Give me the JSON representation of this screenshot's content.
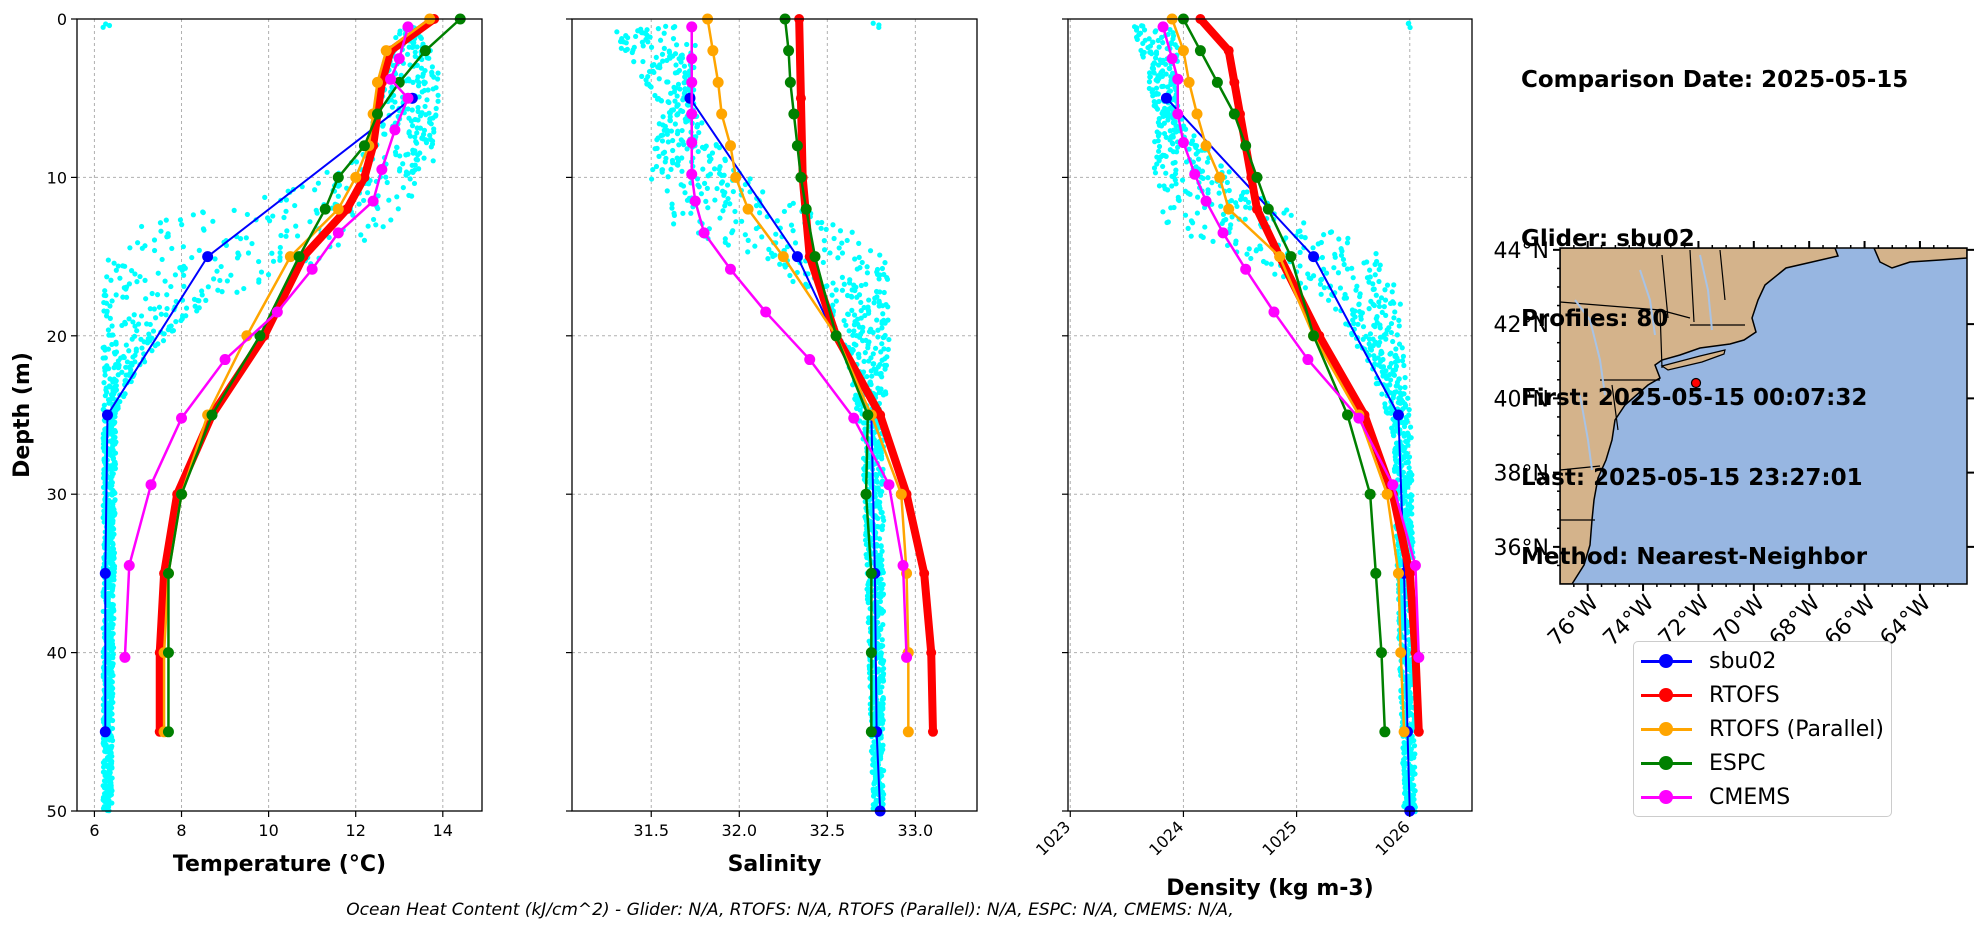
{
  "chart_data": [
    {
      "type": "line",
      "xlabel": "Temperature (°C)",
      "ylabel": "Depth (m)",
      "xlim": [
        5.6,
        14.9
      ],
      "ylim": [
        50,
        0
      ],
      "xticks": [
        6,
        8,
        10,
        12,
        14
      ],
      "yticks": [
        0,
        10,
        20,
        30,
        40,
        50
      ],
      "grid": true,
      "glider_cloud": [
        {
          "depth": 0.5,
          "lo": 13.0,
          "hi": 13.4
        },
        {
          "depth": 3,
          "lo": 12.6,
          "hi": 13.9
        },
        {
          "depth": 6,
          "lo": 12.5,
          "hi": 13.9
        },
        {
          "depth": 9,
          "lo": 12.0,
          "hi": 13.8
        },
        {
          "depth": 11,
          "lo": 10.0,
          "hi": 13.4
        },
        {
          "depth": 13,
          "lo": 7.0,
          "hi": 12.8
        },
        {
          "depth": 15,
          "lo": 6.3,
          "hi": 11.6
        },
        {
          "depth": 18,
          "lo": 6.2,
          "hi": 8.6
        },
        {
          "depth": 22,
          "lo": 6.2,
          "hi": 7.0
        },
        {
          "depth": 25,
          "lo": 6.2,
          "hi": 6.5
        },
        {
          "depth": 50,
          "lo": 6.2,
          "hi": 6.4
        }
      ],
      "series": [
        {
          "name": "sbu02",
          "color": "#0000ff",
          "depth": [
            5,
            15,
            25,
            35,
            45
          ],
          "values": [
            13.3,
            8.6,
            6.3,
            6.25,
            6.25
          ]
        },
        {
          "name": "RTOFS",
          "color": "#ff0000",
          "depth": [
            0,
            2,
            4,
            6,
            8,
            10,
            12,
            15,
            20,
            25,
            30,
            35,
            40,
            45
          ],
          "values": [
            13.8,
            12.8,
            12.6,
            12.5,
            12.4,
            12.2,
            11.8,
            10.8,
            9.9,
            8.7,
            7.9,
            7.6,
            7.5,
            7.5
          ]
        },
        {
          "name": "RTOFS (Parallel)",
          "color": "#ffa500",
          "depth": [
            0,
            2,
            4,
            6,
            8,
            10,
            12,
            15,
            20,
            25,
            30,
            35,
            40,
            45
          ],
          "values": [
            13.7,
            12.7,
            12.5,
            12.4,
            12.3,
            12.0,
            11.6,
            10.5,
            9.5,
            8.6,
            8.0,
            7.7,
            7.6,
            7.6
          ]
        },
        {
          "name": "ESPC",
          "color": "#008000",
          "depth": [
            0,
            2,
            4,
            6,
            8,
            10,
            12,
            15,
            20,
            25,
            30,
            35,
            40,
            45
          ],
          "values": [
            14.4,
            13.6,
            13.0,
            12.5,
            12.2,
            11.6,
            11.3,
            10.7,
            9.8,
            8.7,
            8.0,
            7.7,
            7.7,
            7.7
          ]
        },
        {
          "name": "CMEMS",
          "color": "#ff00ff",
          "depth": [
            0.5,
            2.5,
            3.8,
            5,
            7,
            9.5,
            11.5,
            13.5,
            15.8,
            18.5,
            21.5,
            25.2,
            29.4,
            34.5,
            40.3
          ],
          "values": [
            13.2,
            13.0,
            12.8,
            13.2,
            12.9,
            12.6,
            12.4,
            11.6,
            11.0,
            10.2,
            9.0,
            8.0,
            7.3,
            6.8,
            6.7
          ]
        }
      ]
    },
    {
      "type": "line",
      "xlabel": "Salinity",
      "xlim": [
        31.05,
        33.35
      ],
      "ylim": [
        50,
        0
      ],
      "xticks": [
        31.5,
        32.0,
        32.5,
        33.0
      ],
      "grid": true,
      "glider_cloud": [
        {
          "depth": 0.5,
          "lo": 31.25,
          "hi": 31.75
        },
        {
          "depth": 3,
          "lo": 31.4,
          "hi": 31.75
        },
        {
          "depth": 6,
          "lo": 31.55,
          "hi": 31.75
        },
        {
          "depth": 9,
          "lo": 31.5,
          "hi": 31.95
        },
        {
          "depth": 11,
          "lo": 31.5,
          "hi": 32.2
        },
        {
          "depth": 13,
          "lo": 31.6,
          "hi": 32.6
        },
        {
          "depth": 15,
          "lo": 32.1,
          "hi": 32.85
        },
        {
          "depth": 18,
          "lo": 32.5,
          "hi": 32.85
        },
        {
          "depth": 22,
          "lo": 32.6,
          "hi": 32.85
        },
        {
          "depth": 26,
          "lo": 32.7,
          "hi": 32.82
        },
        {
          "depth": 50,
          "lo": 32.76,
          "hi": 32.82
        }
      ],
      "series": [
        {
          "name": "sbu02",
          "color": "#0000ff",
          "depth": [
            5,
            15,
            25,
            35,
            45,
            50
          ],
          "values": [
            31.72,
            32.33,
            32.75,
            32.77,
            32.78,
            32.8
          ]
        },
        {
          "name": "RTOFS",
          "color": "#ff0000",
          "depth": [
            0,
            5,
            10,
            15,
            20,
            25,
            30,
            35,
            40,
            45
          ],
          "values": [
            32.34,
            32.35,
            32.36,
            32.4,
            32.55,
            32.8,
            32.95,
            33.05,
            33.09,
            33.1
          ]
        },
        {
          "name": "RTOFS (Parallel)",
          "color": "#ffa500",
          "depth": [
            0,
            2,
            4,
            6,
            8,
            10,
            12,
            15,
            20,
            25,
            30,
            35,
            40,
            45
          ],
          "values": [
            31.82,
            31.85,
            31.88,
            31.9,
            31.95,
            31.98,
            32.05,
            32.25,
            32.55,
            32.75,
            32.92,
            32.95,
            32.96,
            32.96
          ]
        },
        {
          "name": "ESPC",
          "color": "#008000",
          "depth": [
            0,
            2,
            4,
            6,
            8,
            10,
            12,
            15,
            20,
            25,
            30,
            35,
            40,
            45
          ],
          "values": [
            32.26,
            32.28,
            32.29,
            32.31,
            32.33,
            32.35,
            32.38,
            32.43,
            32.55,
            32.73,
            32.72,
            32.75,
            32.75,
            32.75
          ]
        },
        {
          "name": "CMEMS",
          "color": "#ff00ff",
          "depth": [
            0.5,
            2.5,
            4,
            6,
            7.8,
            9.8,
            11.5,
            13.5,
            15.8,
            18.5,
            21.5,
            25.2,
            29.4,
            34.5,
            40.3
          ],
          "values": [
            31.73,
            31.73,
            31.73,
            31.73,
            31.73,
            31.73,
            31.75,
            31.8,
            31.95,
            32.15,
            32.4,
            32.65,
            32.85,
            32.93,
            32.95
          ]
        }
      ]
    },
    {
      "type": "line",
      "xlabel": "Density (kg m-3)",
      "xlim": [
        1022.98,
        1026.55
      ],
      "ylim": [
        50,
        0
      ],
      "xticks": [
        1023,
        1024,
        1025,
        1026
      ],
      "grid": true,
      "glider_cloud": [
        {
          "depth": 0.5,
          "lo": 1023.55,
          "hi": 1023.95
        },
        {
          "depth": 3,
          "lo": 1023.65,
          "hi": 1023.95
        },
        {
          "depth": 6,
          "lo": 1023.75,
          "hi": 1023.95
        },
        {
          "depth": 9,
          "lo": 1023.7,
          "hi": 1024.3
        },
        {
          "depth": 11,
          "lo": 1023.75,
          "hi": 1024.6
        },
        {
          "depth": 13,
          "lo": 1023.85,
          "hi": 1025.3
        },
        {
          "depth": 15,
          "lo": 1024.5,
          "hi": 1025.8
        },
        {
          "depth": 18,
          "lo": 1025.3,
          "hi": 1025.92
        },
        {
          "depth": 22,
          "lo": 1025.65,
          "hi": 1025.95
        },
        {
          "depth": 26,
          "lo": 1025.85,
          "hi": 1026.02
        },
        {
          "depth": 50,
          "lo": 1025.95,
          "hi": 1026.05
        }
      ],
      "series": [
        {
          "name": "sbu02",
          "color": "#0000ff",
          "depth": [
            5,
            15,
            25,
            35,
            45,
            50
          ],
          "values": [
            1023.85,
            1025.15,
            1025.9,
            1025.95,
            1025.98,
            1026.0
          ]
        },
        {
          "name": "RTOFS",
          "color": "#ff0000",
          "depth": [
            0,
            2,
            4,
            6,
            8,
            10,
            12,
            15,
            20,
            25,
            30,
            35,
            40,
            45
          ],
          "values": [
            1024.15,
            1024.4,
            1024.45,
            1024.5,
            1024.55,
            1024.6,
            1024.65,
            1024.85,
            1025.2,
            1025.6,
            1025.85,
            1026.0,
            1026.05,
            1026.08
          ]
        },
        {
          "name": "RTOFS (Parallel)",
          "color": "#ffa500",
          "depth": [
            0,
            2,
            4,
            6,
            8,
            10,
            12,
            15,
            20,
            25,
            30,
            35,
            40,
            45
          ],
          "values": [
            1023.9,
            1024.0,
            1024.05,
            1024.12,
            1024.2,
            1024.32,
            1024.4,
            1024.85,
            1025.15,
            1025.55,
            1025.8,
            1025.9,
            1025.92,
            1025.95
          ]
        },
        {
          "name": "ESPC",
          "color": "#008000",
          "depth": [
            0,
            2,
            4,
            6,
            8,
            10,
            12,
            15,
            20,
            25,
            30,
            35,
            40,
            45
          ],
          "values": [
            1024.0,
            1024.15,
            1024.3,
            1024.45,
            1024.55,
            1024.65,
            1024.75,
            1024.95,
            1025.15,
            1025.45,
            1025.65,
            1025.7,
            1025.75,
            1025.78
          ]
        },
        {
          "name": "CMEMS",
          "color": "#ff00ff",
          "depth": [
            0.5,
            2.5,
            3.8,
            6,
            7.8,
            9.8,
            11.5,
            13.5,
            15.8,
            18.5,
            21.5,
            25.2,
            29.4,
            34.5,
            40.3
          ],
          "values": [
            1023.82,
            1023.9,
            1023.95,
            1023.95,
            1024.0,
            1024.1,
            1024.2,
            1024.35,
            1024.55,
            1024.8,
            1025.1,
            1025.55,
            1025.85,
            1026.05,
            1026.08
          ]
        }
      ]
    }
  ],
  "info": {
    "comparison_date": "Comparison Date: 2025-05-15",
    "glider": "Glider: sbu02",
    "profiles": "Profiles: 80",
    "first": "First: 2025-05-15 00:07:32",
    "last": "Last: 2025-05-15 23:27:01",
    "method": "Method: Nearest-Neighbor"
  },
  "map": {
    "lat_labels": [
      "44°N",
      "42°N",
      "40°N",
      "38°N",
      "36°N"
    ],
    "lon_labels": [
      "76°W",
      "74°W",
      "72°W",
      "70°W",
      "68°W",
      "66°W",
      "64°W"
    ],
    "ocean_color": "#97b6e1",
    "land_color": "#d4b38b",
    "glider_location": {
      "lon": -71.6,
      "lat": 40.6
    }
  },
  "legend": [
    {
      "label": "sbu02",
      "color": "#0000ff"
    },
    {
      "label": "RTOFS",
      "color": "#ff0000"
    },
    {
      "label": "RTOFS (Parallel)",
      "color": "#ffa500"
    },
    {
      "label": "ESPC",
      "color": "#008000"
    },
    {
      "label": "CMEMS",
      "color": "#ff00ff"
    }
  ],
  "footer": "Ocean Heat Content (kJ/cm^2) - Glider: N/A,  RTOFS: N/A,  RTOFS (Parallel): N/A,  ESPC: N/A,  CMEMS: N/A,"
}
